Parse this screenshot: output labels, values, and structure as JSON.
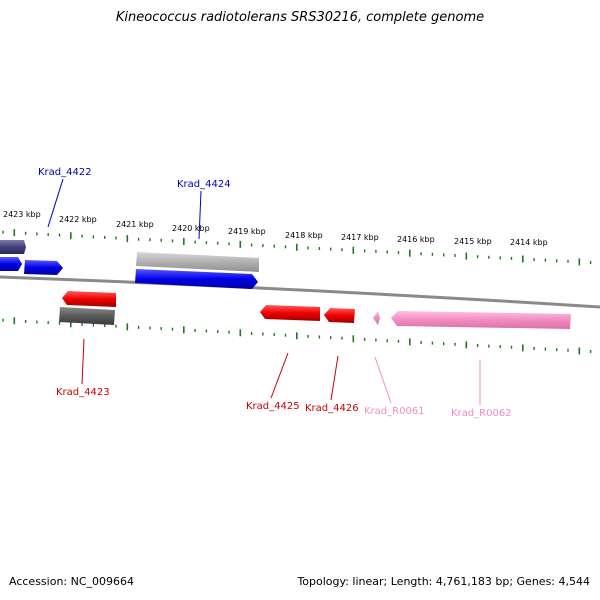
{
  "title": "Kineococcus radiotolerans SRS30216, complete genome",
  "footer": {
    "accession": "Accession: NC_009664",
    "stats": "Topology: linear; Length: 4,761,183 bp; Genes: 4,544"
  },
  "colors": {
    "backbone": "#888888",
    "ticks": "#1f7a1f",
    "forward_gene": "#0000e0",
    "reverse_gene": "#e00000",
    "pseudo_gene": "#707070",
    "rna_gene": "#f0a0c8",
    "dark_gene": "#40407a"
  },
  "ruler": {
    "labels": [
      "2423 kbp",
      "2422 kbp",
      "2421 kbp",
      "2420 kbp",
      "2419 kbp",
      "2418 kbp",
      "2417 kbp",
      "2416 kbp",
      "2415 kbp",
      "2414 kbp"
    ]
  },
  "genes": [
    {
      "label": "Krad_4422",
      "color": "#0000c0"
    },
    {
      "label": "Krad_4424",
      "color": "#0000c0"
    },
    {
      "label": "Krad_4423",
      "color": "#cc0000"
    },
    {
      "label": "Krad_4425",
      "color": "#cc0000"
    },
    {
      "label": "Krad_4426",
      "color": "#cc0000"
    },
    {
      "label": "Krad_R0061",
      "color": "#f08cc0"
    },
    {
      "label": "Krad_R0062",
      "color": "#f08cc0"
    }
  ]
}
